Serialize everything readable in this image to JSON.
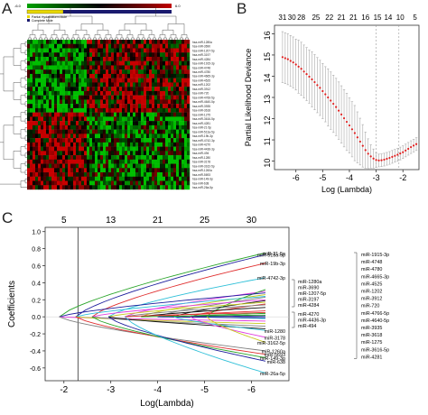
{
  "panels": {
    "a": {
      "letter": "A",
      "colorbar": {
        "min_label": "-6.0",
        "max_label": "6.0"
      },
      "legend": [
        "Partial Hydatidiform Mole",
        "Complete Mole"
      ],
      "row_labels": [
        "hsa-miR-1280a",
        "hsa-miR-3690",
        "hsa-miR-1207-5p",
        "hsa-miR-3197",
        "hsa-miR-4284",
        "hsa-miR-1915-3p",
        "hsa-miR-4748",
        "hsa-miR-4780",
        "hsa-miR-4665-3p",
        "hsa-miR-4525",
        "hsa-miR-1202",
        "hsa-miR-3912",
        "hsa-miR-720",
        "hsa-miR-4766-5p",
        "hsa-miR-4640-5p",
        "hsa-miR-3935",
        "hsa-miR-3618",
        "hsa-miR-1275",
        "hsa-miR-3616-5p",
        "hsa-miR-4281",
        "hsa-miR-21-5p",
        "hsa-miR-513a-5p",
        "hsa-miR-19b-3p",
        "hsa-miR-4742-3p",
        "hsa-miR-4270",
        "hsa-miR-4436-3p",
        "hsa-miR-494",
        "hsa-miR-1280",
        "hsa-miR-3178",
        "hsa-miR-3162-5p",
        "hsa-miR-1260a",
        "hsa-miR-5693",
        "hsa-miR-149-3p",
        "hsa-miR-638",
        "hsa-miR-26a-5p"
      ]
    },
    "b": {
      "letter": "B"
    },
    "c": {
      "letter": "C"
    }
  },
  "chart_data": [
    {
      "panel": "B",
      "type": "scatter",
      "xlabel": "Log (Lambda)",
      "ylabel": "Partial Likelihood Deviance",
      "xlim": [
        -6.8,
        -1.4
      ],
      "ylim": [
        9.6,
        16.4
      ],
      "xticks": [
        -6,
        -5,
        -4,
        -3,
        -2
      ],
      "yticks": [
        10,
        11,
        12,
        13,
        14,
        15,
        16
      ],
      "top_ticks": [
        {
          "x": -6.5,
          "label": "31"
        },
        {
          "x": -6.15,
          "label": "30"
        },
        {
          "x": -5.8,
          "label": "28"
        },
        {
          "x": -5.25,
          "label": "25"
        },
        {
          "x": -4.75,
          "label": "22"
        },
        {
          "x": -4.3,
          "label": "21"
        },
        {
          "x": -3.85,
          "label": "21"
        },
        {
          "x": -3.4,
          "label": "16"
        },
        {
          "x": -2.95,
          "label": "15"
        },
        {
          "x": -2.55,
          "label": "14"
        },
        {
          "x": -2.1,
          "label": "10"
        },
        {
          "x": -1.55,
          "label": "5"
        }
      ],
      "vlines": [
        -3.0,
        -2.15
      ],
      "grid": false,
      "series": [
        {
          "x": [
            -6.5,
            -6.4,
            -6.3,
            -6.2,
            -6.1,
            -6.0,
            -5.9,
            -5.8,
            -5.7,
            -5.6,
            -5.5,
            -5.4,
            -5.3,
            -5.2,
            -5.1,
            -5.0,
            -4.9,
            -4.8,
            -4.7,
            -4.6,
            -4.5,
            -4.4,
            -4.3,
            -4.2,
            -4.1,
            -4.0,
            -3.9,
            -3.8,
            -3.7,
            -3.6,
            -3.5,
            -3.4,
            -3.3,
            -3.2,
            -3.1,
            -3.0,
            -2.9,
            -2.8,
            -2.7,
            -2.6,
            -2.5,
            -2.4,
            -2.3,
            -2.2,
            -2.1,
            -2.0,
            -1.9,
            -1.8,
            -1.7,
            -1.6,
            -1.5
          ],
          "y": [
            14.9,
            14.85,
            14.8,
            14.72,
            14.65,
            14.55,
            14.45,
            14.35,
            14.22,
            14.1,
            13.98,
            13.85,
            13.72,
            13.58,
            13.45,
            13.3,
            13.15,
            13.0,
            12.85,
            12.7,
            12.55,
            12.38,
            12.2,
            12.02,
            11.85,
            11.68,
            11.5,
            11.32,
            11.12,
            10.92,
            10.72,
            10.52,
            10.35,
            10.22,
            10.12,
            10.05,
            10.03,
            10.04,
            10.07,
            10.11,
            10.15,
            10.2,
            10.25,
            10.3,
            10.36,
            10.42,
            10.5,
            10.58,
            10.66,
            10.73,
            10.8
          ],
          "err": [
            1.2,
            1.2,
            1.2,
            1.2,
            1.2,
            1.2,
            1.25,
            1.25,
            1.25,
            1.25,
            1.25,
            1.3,
            1.3,
            1.3,
            1.3,
            1.3,
            1.3,
            1.35,
            1.35,
            1.35,
            1.35,
            1.35,
            1.35,
            1.35,
            1.35,
            1.3,
            1.3,
            1.3,
            1.2,
            1.1,
            1.0,
            0.85,
            0.7,
            0.55,
            0.45,
            0.35,
            0.3,
            0.3,
            0.3,
            0.3,
            0.3,
            0.3,
            0.3,
            0.3,
            0.3,
            0.3,
            0.3,
            0.3,
            0.3,
            0.3,
            0.3
          ]
        }
      ]
    },
    {
      "panel": "C",
      "type": "line",
      "xlabel": "Log(Lambda)",
      "ylabel": "Coefficients",
      "xlim": [
        -6.8,
        -1.6
      ],
      "ylim": [
        -0.75,
        1.05
      ],
      "xticks": [
        -6,
        -5,
        -4,
        -3,
        -2
      ],
      "yticks": [
        -0.6,
        -0.4,
        -0.2,
        0.0,
        0.2,
        0.4,
        0.6,
        0.8,
        1.0
      ],
      "top_ticks": [
        {
          "x": -2.0,
          "label": "5"
        },
        {
          "x": -3.0,
          "label": "13"
        },
        {
          "x": -4.0,
          "label": "21"
        },
        {
          "x": -5.0,
          "label": "25"
        },
        {
          "x": -6.0,
          "label": "30"
        }
      ],
      "vline": -2.3,
      "axis_reversed": true,
      "series": [
        {
          "name": "miR-21-5p",
          "end": 0.75,
          "color": "#2aa52a"
        },
        {
          "name": "miR-513a-5p",
          "end": 0.73,
          "color": "#1c1c9c"
        },
        {
          "name": "miR-19b-3p",
          "end": 0.63,
          "color": "#e03030"
        },
        {
          "name": "miR-4742-3p",
          "end": 0.46,
          "color": "#30c0d8"
        },
        {
          "name": "miR-1280a",
          "end": 0.3,
          "color": "#e040e0"
        },
        {
          "name": "miR-3690",
          "end": 0.26,
          "color": "#c8c820"
        },
        {
          "name": "miR-1207-5p",
          "end": 0.23,
          "color": "#808080"
        },
        {
          "name": "miR-3197",
          "end": 0.19,
          "color": "#111111"
        },
        {
          "name": "miR-4284",
          "end": 0.15,
          "color": "#e03030"
        },
        {
          "name": "miR-1915-3p",
          "end": 0.32,
          "color": "#2aa52a"
        },
        {
          "name": "miR-4748",
          "end": 0.28,
          "color": "#1c1c9c"
        },
        {
          "name": "miR-4780",
          "end": 0.24,
          "color": "#30c0d8"
        },
        {
          "name": "miR-4665-3p",
          "end": 0.2,
          "color": "#e040e0"
        },
        {
          "name": "miR-4525",
          "end": 0.17,
          "color": "#c8c820"
        },
        {
          "name": "miR-1202",
          "end": 0.14,
          "color": "#808080"
        },
        {
          "name": "miR-3912",
          "end": 0.11,
          "color": "#111111"
        },
        {
          "name": "miR-720",
          "end": 0.07,
          "color": "#e03030"
        },
        {
          "name": "miR-4766-5p",
          "end": 0.04,
          "color": "#2aa52a"
        },
        {
          "name": "miR-4640-5p",
          "end": 0.01,
          "color": "#1c1c9c"
        },
        {
          "name": "miR-3935",
          "end": -0.02,
          "color": "#30c0d8"
        },
        {
          "name": "miR-3618",
          "end": -0.05,
          "color": "#e040e0"
        },
        {
          "name": "miR-1275",
          "end": -0.08,
          "color": "#c8c820"
        },
        {
          "name": "miR-3616-5p",
          "end": -0.11,
          "color": "#808080"
        },
        {
          "name": "miR-4281",
          "end": -0.14,
          "color": "#111111"
        },
        {
          "name": "miR-4270",
          "end": 0.05,
          "color": "#e03030"
        },
        {
          "name": "miR-4436-3p",
          "end": 0.02,
          "color": "#2aa52a"
        },
        {
          "name": "miR-494",
          "end": -0.01,
          "color": "#1c1c9c"
        },
        {
          "name": "miR-1280",
          "end": -0.16,
          "color": "#30c0d8"
        },
        {
          "name": "miR-3178",
          "end": -0.24,
          "color": "#e040e0"
        },
        {
          "name": "miR-3162-5p",
          "end": -0.3,
          "color": "#c8c820"
        },
        {
          "name": "miR-1260a",
          "end": -0.4,
          "color": "#808080"
        },
        {
          "name": "miR-5693",
          "end": -0.44,
          "color": "#e03030"
        },
        {
          "name": "miR-149-3p",
          "end": -0.48,
          "color": "#2aa52a"
        },
        {
          "name": "miR-638",
          "end": -0.52,
          "color": "#1c1c9c"
        },
        {
          "name": "miR-26a-5p",
          "end": -0.66,
          "color": "#30c0d8"
        }
      ]
    }
  ]
}
